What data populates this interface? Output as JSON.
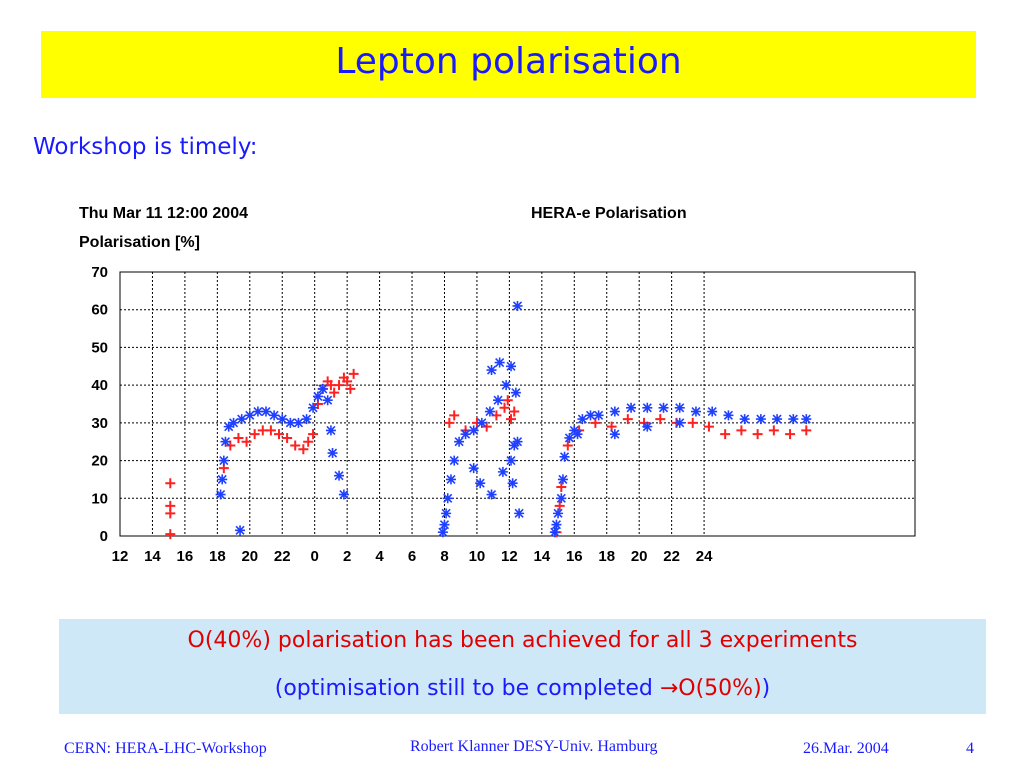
{
  "slide": {
    "title": "Lepton polarisation",
    "subtitle": "Workshop is timely:",
    "note_line1": "O(40%) polarisation has been achieved for all 3 experiments",
    "note_line2_prefix": "(optimisation still to be completed ",
    "note_arrow": "→",
    "note_line2_target": "O(50%)",
    "note_line2_suffix": ")",
    "footer_left": "CERN: HERA-LHC-Workshop",
    "footer_center": "Robert Klanner DESY-Univ. Hamburg",
    "footer_date": "26.Mar. 2004",
    "footer_page": "4"
  },
  "colors": {
    "title_bg": "#ffff00",
    "title_text": "#1a1aff",
    "note_bg": "#cfe8f8",
    "highlight": "#e00000",
    "series_red": "#ff2020",
    "series_blue": "#2040ff"
  },
  "chart_data": {
    "type": "scatter",
    "title": "HERA-e Polarisation",
    "timestamp": "Thu Mar 11 12:00 2004",
    "ylabel": "Polarisation [%]",
    "xlabel": "",
    "ylim": [
      0,
      70
    ],
    "yticks": [
      "0",
      "10",
      "20",
      "30",
      "40",
      "50",
      "60",
      "70"
    ],
    "xlim_hours": [
      12,
      61
    ],
    "xticks": [
      "12",
      "14",
      "16",
      "18",
      "20",
      "22",
      "0",
      "2",
      "4",
      "6",
      "8",
      "10",
      "12",
      "14",
      "16",
      "18",
      "20",
      "22",
      "24"
    ],
    "grid": true,
    "series": [
      {
        "marker": "plus",
        "color": "#ff2020",
        "points": [
          [
            15.1,
            0.5
          ],
          [
            15.1,
            6
          ],
          [
            15.1,
            8
          ],
          [
            15.1,
            14
          ],
          [
            18.4,
            18
          ],
          [
            18.8,
            24
          ],
          [
            19.3,
            26
          ],
          [
            19.8,
            25
          ],
          [
            20.3,
            27
          ],
          [
            20.8,
            28
          ],
          [
            21.3,
            28
          ],
          [
            21.8,
            27
          ],
          [
            22.3,
            26
          ],
          [
            22.8,
            24
          ],
          [
            23.3,
            23
          ],
          [
            23.6,
            25
          ],
          [
            23.9,
            27
          ],
          [
            24.2,
            35
          ],
          [
            24.5,
            39
          ],
          [
            24.8,
            41
          ],
          [
            25.0,
            40
          ],
          [
            25.2,
            38
          ],
          [
            25.5,
            40
          ],
          [
            25.8,
            42
          ],
          [
            26.0,
            41
          ],
          [
            26.2,
            39
          ],
          [
            26.4,
            43
          ],
          [
            32.3,
            30
          ],
          [
            32.6,
            32
          ],
          [
            33.3,
            28
          ],
          [
            34.0,
            30
          ],
          [
            34.6,
            29
          ],
          [
            35.2,
            32
          ],
          [
            35.7,
            34
          ],
          [
            35.9,
            36
          ],
          [
            36.1,
            31
          ],
          [
            36.3,
            33
          ],
          [
            38.9,
            1
          ],
          [
            39.1,
            8
          ],
          [
            39.2,
            13
          ],
          [
            39.6,
            24
          ],
          [
            40.3,
            28
          ],
          [
            41.3,
            30
          ],
          [
            42.3,
            29
          ],
          [
            43.3,
            31
          ],
          [
            44.3,
            30
          ],
          [
            45.3,
            31
          ],
          [
            46.3,
            30
          ],
          [
            47.3,
            30
          ],
          [
            48.3,
            29
          ],
          [
            49.3,
            27
          ],
          [
            50.3,
            28
          ],
          [
            51.3,
            27
          ],
          [
            52.3,
            28
          ],
          [
            53.3,
            27
          ],
          [
            54.3,
            28
          ]
        ]
      },
      {
        "marker": "asterisk",
        "color": "#2040ff",
        "points": [
          [
            18.2,
            11
          ],
          [
            18.3,
            15
          ],
          [
            18.4,
            20
          ],
          [
            18.5,
            25
          ],
          [
            18.7,
            29
          ],
          [
            19.0,
            30
          ],
          [
            19.5,
            31
          ],
          [
            20.0,
            32
          ],
          [
            20.5,
            33
          ],
          [
            21.0,
            33
          ],
          [
            21.5,
            32
          ],
          [
            22.0,
            31
          ],
          [
            22.5,
            30
          ],
          [
            23.0,
            30
          ],
          [
            23.5,
            31
          ],
          [
            23.9,
            34
          ],
          [
            24.2,
            37
          ],
          [
            24.5,
            39
          ],
          [
            24.8,
            36
          ],
          [
            25.0,
            28
          ],
          [
            25.1,
            22
          ],
          [
            25.5,
            16
          ],
          [
            25.8,
            11
          ],
          [
            19.4,
            1.5
          ],
          [
            31.9,
            1
          ],
          [
            32.0,
            3
          ],
          [
            32.1,
            6
          ],
          [
            32.2,
            10
          ],
          [
            32.4,
            15
          ],
          [
            32.6,
            20
          ],
          [
            32.9,
            25
          ],
          [
            33.3,
            27
          ],
          [
            33.8,
            28
          ],
          [
            34.3,
            30
          ],
          [
            34.8,
            33
          ],
          [
            35.3,
            36
          ],
          [
            35.8,
            40
          ],
          [
            36.1,
            45
          ],
          [
            36.4,
            38
          ],
          [
            34.9,
            44
          ],
          [
            35.4,
            46
          ],
          [
            33.8,
            18
          ],
          [
            34.2,
            14
          ],
          [
            34.9,
            11
          ],
          [
            35.6,
            17
          ],
          [
            36.1,
            20
          ],
          [
            36.3,
            24
          ],
          [
            36.5,
            25
          ],
          [
            36.6,
            6
          ],
          [
            36.2,
            14
          ],
          [
            36.5,
            61
          ],
          [
            38.8,
            1
          ],
          [
            38.9,
            3
          ],
          [
            39.0,
            6
          ],
          [
            39.2,
            10
          ],
          [
            39.3,
            15
          ],
          [
            39.4,
            21
          ],
          [
            39.7,
            26
          ],
          [
            40.0,
            28
          ],
          [
            40.5,
            31
          ],
          [
            41.0,
            32
          ],
          [
            41.5,
            32
          ],
          [
            42.5,
            33
          ],
          [
            43.5,
            34
          ],
          [
            44.5,
            34
          ],
          [
            45.5,
            34
          ],
          [
            46.5,
            34
          ],
          [
            47.5,
            33
          ],
          [
            48.5,
            33
          ],
          [
            49.5,
            32
          ],
          [
            50.5,
            31
          ],
          [
            51.5,
            31
          ],
          [
            52.5,
            31
          ],
          [
            53.5,
            31
          ],
          [
            54.3,
            31
          ],
          [
            42.5,
            27
          ],
          [
            44.5,
            29
          ],
          [
            40.2,
            27
          ],
          [
            46.5,
            30
          ]
        ]
      }
    ]
  }
}
